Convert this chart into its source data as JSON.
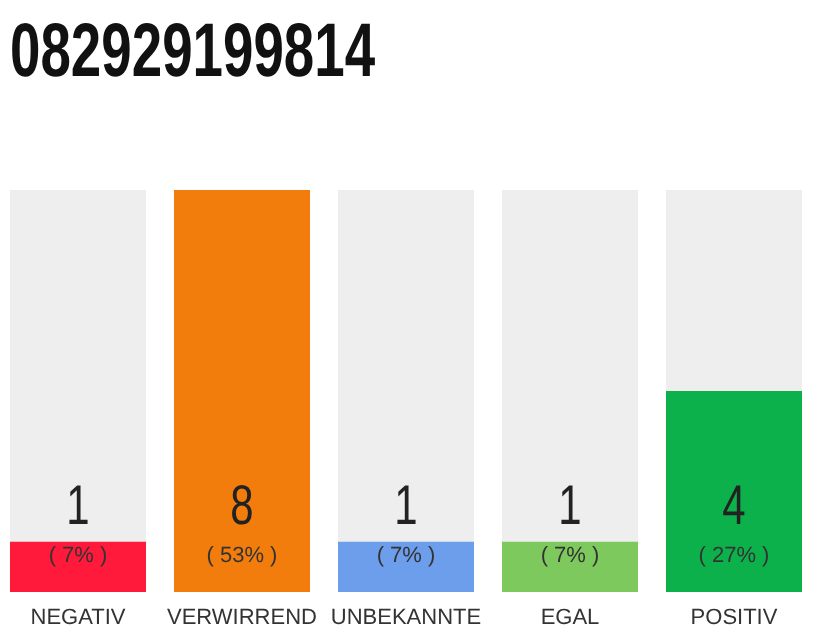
{
  "chart_data": {
    "type": "bar",
    "title": "082929199814",
    "categories": [
      "NEGATIV",
      "VERWIRREND",
      "UNBEKANNTE",
      "EGAL",
      "POSITIV"
    ],
    "values": [
      1,
      8,
      1,
      1,
      4
    ],
    "colors": [
      "#ff1a3c",
      "#f27d0c",
      "#6d9eeb",
      "#7dc95e",
      "#0db14b"
    ],
    "ylim": [
      0,
      8
    ],
    "data_labels": true,
    "annotations": [
      "( 7% )",
      "( 53% )",
      "( 7% )",
      "( 7% )",
      "( 27% )"
    ]
  }
}
